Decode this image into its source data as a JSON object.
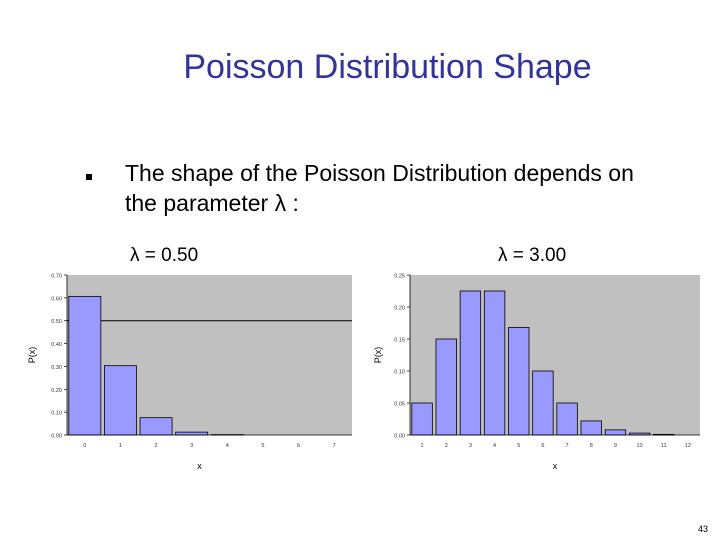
{
  "slide": {
    "title": "Poisson Distribution Shape",
    "bullet_text": "The shape of the Poisson Distribution depends on the parameter λ :",
    "page_number": "43"
  },
  "colors": {
    "title": "#333399",
    "bar": "#9999ff",
    "plot_background": "#c0c0c0",
    "text": "#000000"
  },
  "chart_data": [
    {
      "type": "bar",
      "header": "λ = 0.50",
      "xlabel": "x",
      "ylabel": "P(x)",
      "categories": [
        "0",
        "1",
        "2",
        "3",
        "4",
        "5",
        "6",
        "7"
      ],
      "values": [
        0.6065,
        0.3033,
        0.0758,
        0.0126,
        0.0016,
        0.0002,
        0.0,
        0.0
      ],
      "ylim": [
        0,
        0.7
      ],
      "yticks": [
        "0.00",
        "0.10",
        "0.20",
        "0.30",
        "0.40",
        "0.50",
        "0.60",
        "0.70"
      ],
      "reference_line": 0.5,
      "grid": false,
      "legend": "none"
    },
    {
      "type": "bar",
      "header": "λ = 3.00",
      "xlabel": "x",
      "ylabel": "P(x)",
      "categories": [
        "1",
        "2",
        "3",
        "4",
        "5",
        "6",
        "7",
        "8",
        "9",
        "10",
        "11",
        "12"
      ],
      "values": [
        0.05,
        0.15,
        0.225,
        0.225,
        0.168,
        0.1,
        0.05,
        0.022,
        0.008,
        0.003,
        0.001,
        0.0
      ],
      "ylim": [
        0,
        0.25
      ],
      "yticks": [
        "0.00",
        "0.05",
        "0.10",
        "0.15",
        "0.20",
        "0.25"
      ],
      "grid": false,
      "legend": "none"
    }
  ]
}
